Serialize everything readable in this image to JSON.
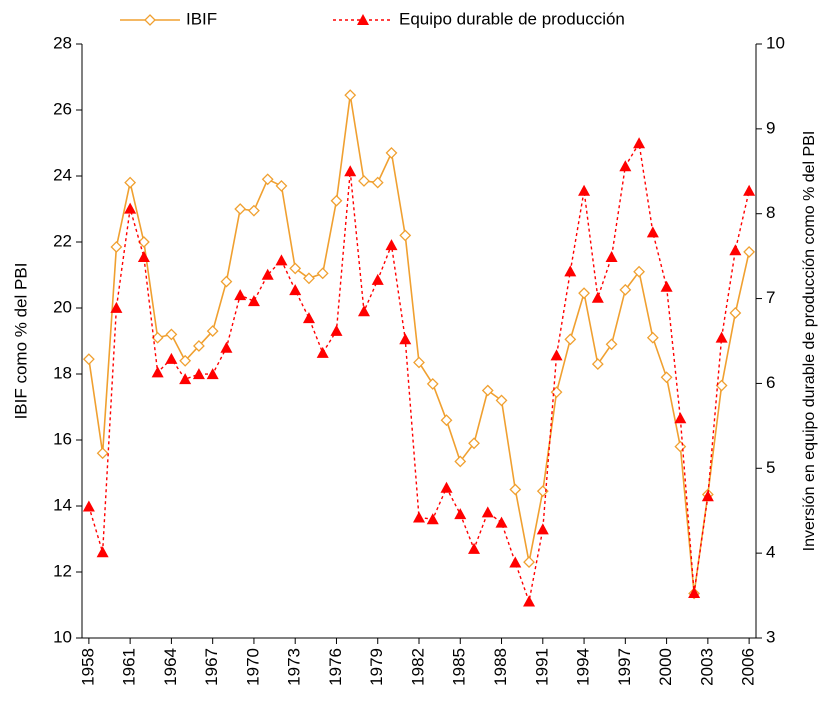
{
  "chart_data": {
    "type": "line",
    "x": [
      1958,
      1959,
      1960,
      1961,
      1962,
      1963,
      1964,
      1965,
      1966,
      1967,
      1968,
      1969,
      1970,
      1971,
      1972,
      1973,
      1974,
      1975,
      1976,
      1977,
      1978,
      1979,
      1980,
      1981,
      1982,
      1983,
      1984,
      1985,
      1986,
      1987,
      1988,
      1989,
      1990,
      1991,
      1992,
      1993,
      1994,
      1995,
      1996,
      1997,
      1998,
      1999,
      2000,
      2001,
      2002,
      2003,
      2004,
      2005,
      2006
    ],
    "xlim": [
      1957.5,
      2006.5
    ],
    "xticks": [
      1958,
      1961,
      1964,
      1967,
      1970,
      1973,
      1976,
      1979,
      1982,
      1985,
      1988,
      1991,
      1994,
      1997,
      2000,
      2003,
      2006
    ],
    "ylabel": "IBIF como % del PBI",
    "y2label": "Inversión en equipo durable de producción como % del PBI",
    "ylim": [
      10,
      28
    ],
    "yticks": [
      10,
      12,
      14,
      16,
      18,
      20,
      22,
      24,
      26,
      28
    ],
    "y2lim": [
      3,
      10
    ],
    "y2ticks": [
      3,
      4,
      5,
      6,
      7,
      8,
      9,
      10
    ],
    "series": [
      {
        "name": "IBIF",
        "color": "#f0a030",
        "marker": "diamond",
        "dash": "solid",
        "values": [
          18.45,
          15.6,
          21.85,
          23.8,
          22.0,
          19.1,
          19.2,
          18.4,
          18.85,
          19.3,
          20.8,
          23.0,
          22.95,
          23.9,
          23.7,
          21.2,
          20.9,
          21.05,
          23.25,
          26.45,
          23.85,
          23.8,
          24.7,
          22.2,
          18.35,
          17.7,
          16.6,
          15.35,
          15.9,
          17.5,
          17.2,
          14.5,
          12.3,
          14.45,
          17.45,
          19.05,
          20.45,
          18.3,
          18.9,
          20.55,
          21.1,
          19.1,
          17.9,
          15.8,
          11.35,
          14.35,
          17.65,
          19.85,
          21.7
        ]
      },
      {
        "name": "Equipo durable de producción",
        "color": "#ff0000",
        "marker": "triangle",
        "dash": "dotted",
        "axis": "y2",
        "values": [
          4.55,
          4.01,
          6.89,
          8.06,
          7.49,
          6.13,
          6.29,
          6.05,
          6.11,
          6.11,
          6.42,
          7.04,
          6.97,
          7.28,
          7.45,
          7.1,
          6.77,
          6.36,
          6.62,
          8.5,
          6.85,
          7.22,
          7.63,
          6.52,
          4.42,
          4.4,
          4.77,
          4.46,
          4.05,
          4.48,
          4.36,
          3.89,
          3.43,
          4.28,
          6.33,
          7.32,
          8.27,
          7.01,
          7.49,
          8.56,
          8.83,
          7.78,
          7.14,
          5.59,
          3.53,
          4.67,
          6.54,
          7.57,
          8.27
        ]
      }
    ]
  }
}
